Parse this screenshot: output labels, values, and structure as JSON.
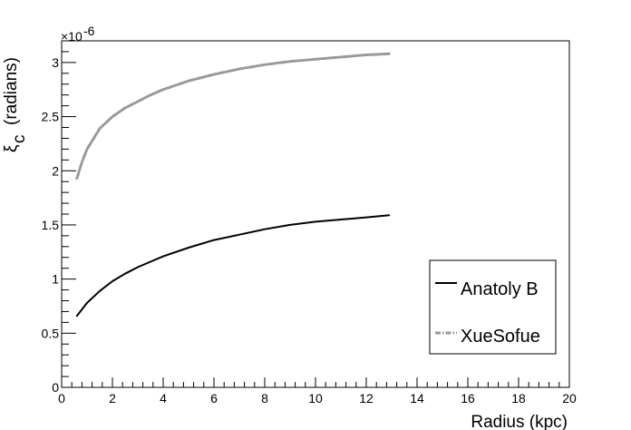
{
  "chart_data": {
    "type": "line",
    "title": "",
    "xlabel": "Radius (kpc)",
    "ylabel_main": "ξ",
    "ylabel_sub": "c",
    "ylabel_unit": "(radians)",
    "y_exponent_prefix": "×10",
    "y_exponent": "-6",
    "xlim": [
      0,
      20
    ],
    "ylim": [
      0,
      3.2
    ],
    "x_ticks": [
      0,
      2,
      4,
      6,
      8,
      10,
      12,
      14,
      16,
      18,
      20
    ],
    "y_ticks": [
      0,
      0.5,
      1,
      1.5,
      2,
      2.5,
      3
    ],
    "grid": false,
    "legend_position": "lower-right",
    "series": [
      {
        "name": "Anatoly B",
        "color": "#000000",
        "style": "solid",
        "x": [
          0.6,
          1.0,
          1.5,
          2.0,
          2.5,
          3.0,
          3.5,
          4.0,
          5.0,
          6.0,
          7.0,
          8.0,
          9.0,
          10.0,
          11.0,
          12.0,
          12.9
        ],
        "y": [
          0.66,
          0.78,
          0.89,
          0.98,
          1.05,
          1.11,
          1.16,
          1.21,
          1.29,
          1.36,
          1.41,
          1.46,
          1.5,
          1.53,
          1.55,
          1.57,
          1.59
        ]
      },
      {
        "name": "XueSofue",
        "color": "#999999",
        "style": "dash-dot",
        "x": [
          0.6,
          0.8,
          1.0,
          1.5,
          2.0,
          2.5,
          3.0,
          3.5,
          4.0,
          5.0,
          6.0,
          7.0,
          8.0,
          9.0,
          10.0,
          11.0,
          12.0,
          12.9
        ],
        "y": [
          1.93,
          2.08,
          2.2,
          2.39,
          2.5,
          2.58,
          2.64,
          2.7,
          2.75,
          2.83,
          2.89,
          2.94,
          2.98,
          3.01,
          3.03,
          3.05,
          3.07,
          3.08
        ]
      }
    ]
  }
}
